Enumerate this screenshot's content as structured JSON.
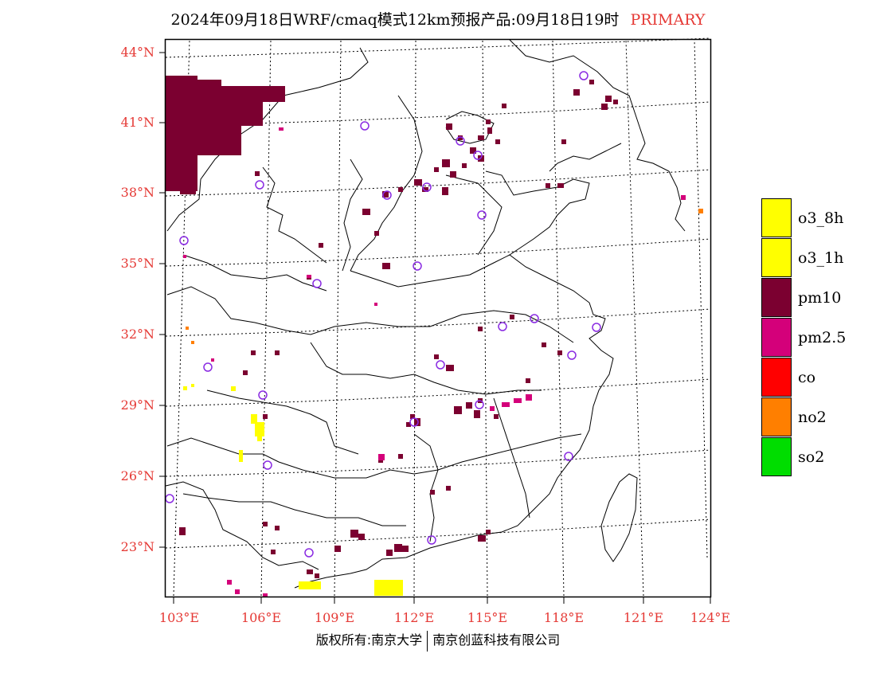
{
  "title": {
    "main": "2024年09月18日WRF/cmaq模式12km预报产品:09月18日19时",
    "tag": "PRIMARY"
  },
  "lat_labels": [
    "44°N",
    "41°N",
    "38°N",
    "35°N",
    "32°N",
    "29°N",
    "26°N",
    "23°N"
  ],
  "lon_labels": [
    "103°E",
    "106°E",
    "109°E",
    "112°E",
    "115°E",
    "118°E",
    "121°E",
    "124°E"
  ],
  "legend": [
    {
      "label": "o3_8h",
      "color": "#ffff00"
    },
    {
      "label": "o3_1h",
      "color": "#ffff00"
    },
    {
      "label": "pm10",
      "color": "#7b0030"
    },
    {
      "label": "pm2.5",
      "color": "#d4007a"
    },
    {
      "label": "co",
      "color": "#ff0000"
    },
    {
      "label": "no2",
      "color": "#ff7f00"
    },
    {
      "label": "so2",
      "color": "#00dd00"
    }
  ],
  "footer": {
    "left": "版权所有:南京大学",
    "right": "南京创蓝科技有限公司"
  },
  "colors": {
    "label_red": "#e53935",
    "pm10": "#7b0030",
    "pm25": "#d4007a",
    "o3": "#ffff00",
    "no2": "#ff7f00",
    "station_circle": "#8a2be2"
  }
}
